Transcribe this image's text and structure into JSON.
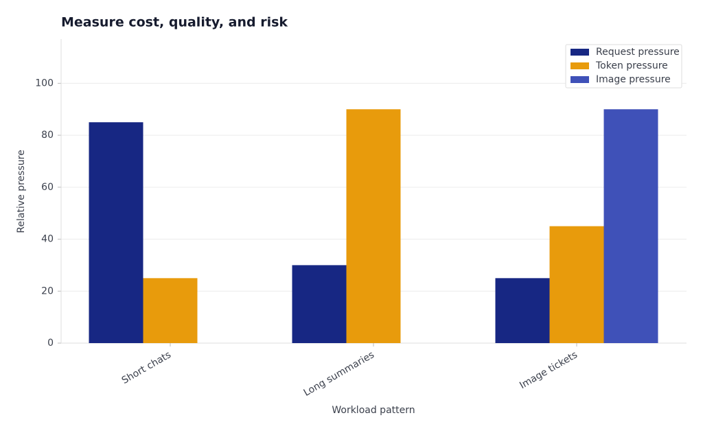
{
  "chart_data": {
    "type": "bar",
    "title": "Measure cost, quality, and risk",
    "x_label": "Workload pattern",
    "y_label": "Relative pressure",
    "categories": [
      "Short chats",
      "Long summaries",
      "Image tickets"
    ],
    "series": [
      {
        "name": "Request pressure",
        "color": "#172783",
        "values": [
          85,
          30,
          25
        ]
      },
      {
        "name": "Token pressure",
        "color": "#e89b0c",
        "values": [
          25,
          90,
          45
        ]
      },
      {
        "name": "Image pressure",
        "color": "#3f51b8",
        "values": [
          0,
          0,
          90
        ]
      }
    ],
    "ylim": [
      0,
      117
    ],
    "yticks": [
      0,
      20,
      40,
      60,
      80,
      100
    ],
    "grid": true,
    "legend": "upper right"
  }
}
